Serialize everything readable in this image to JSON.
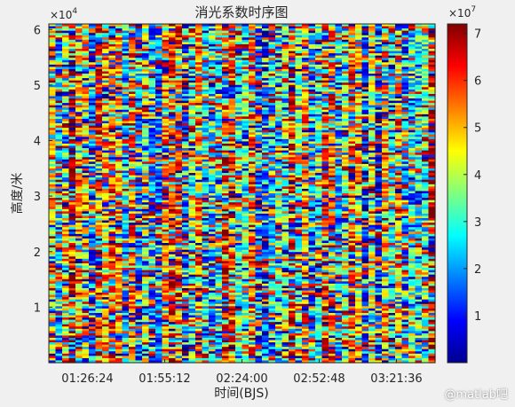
{
  "chart_data": {
    "type": "heatmap",
    "title": "消光系数时序图",
    "xlabel": "时间(BJS)",
    "ylabel": "高度/米",
    "x_ticks": [
      "01:26:24",
      "01:55:12",
      "02:24:00",
      "02:52:48",
      "03:21:36"
    ],
    "x_range": [
      "01:12:00",
      "03:36:00"
    ],
    "y_ticks": [
      1,
      2,
      3,
      4,
      5,
      6
    ],
    "y_exponent": "×10^4",
    "y_range": [
      0,
      61000
    ],
    "colorbar": {
      "colormap": "jet",
      "ticks": [
        1,
        2,
        3,
        4,
        5,
        6,
        7
      ],
      "exponent": "×10^7",
      "range": [
        0,
        7.2
      ]
    },
    "values_note": "random noise field of extinction coefficients ranging roughly 0 to 7.2×10^7 across all heights and times"
  },
  "watermark": "@matlab吧",
  "tick_labels": {
    "y_exp_base": "×10",
    "y_exp_pow": "4",
    "cb_exp_base": "×10",
    "cb_exp_pow": "7"
  },
  "colors": {
    "background": "#f0f0f0",
    "axes_text": "#262626"
  }
}
